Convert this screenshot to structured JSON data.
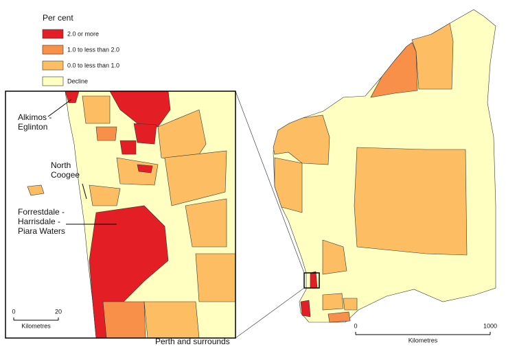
{
  "legend": {
    "title": "Per cent",
    "items": [
      {
        "label": "2.0 or more",
        "color": "#e31e24"
      },
      {
        "label": "1.0 to less than 2.0",
        "color": "#f8904a"
      },
      {
        "label": "0.0 to less than 1.0",
        "color": "#fdbe63"
      },
      {
        "label": "Decline",
        "color": "#ffffc2"
      }
    ]
  },
  "inset": {
    "caption": "Perth and surrounds",
    "labels": [
      [
        "Alkimos -",
        "Eglinton"
      ],
      [
        "North",
        "Coogee"
      ],
      [
        "Forrestdale -",
        "Harrisdale -",
        "Piara Waters"
      ]
    ],
    "scale": {
      "ticks": [
        0,
        20
      ],
      "unit": "Kilometres"
    }
  },
  "main": {
    "scale": {
      "ticks": [
        0,
        1000
      ],
      "unit": "Kilometres"
    }
  }
}
